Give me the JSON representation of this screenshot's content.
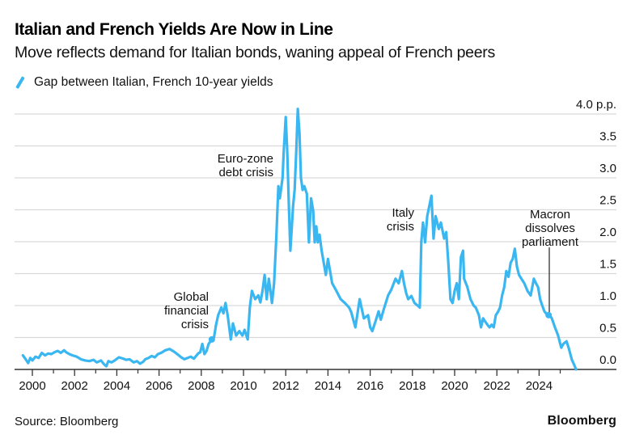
{
  "header": {
    "title": "Italian and French Yields Are Now in Line",
    "subtitle": "Move reflects demand for Italian bonds, waning appeal of French peers"
  },
  "footer": {
    "source": "Source: Bloomberg",
    "logo": "Bloomberg"
  },
  "colors": {
    "series": "#3ab7f0",
    "grid": "#d9d9d9",
    "axis": "#333333",
    "text": "#111111"
  },
  "chart_data": {
    "type": "line",
    "title": "Italian and French Yields Are Now in Line",
    "subtitle": "Move reflects demand for Italian bonds, waning appeal of French peers",
    "xlabel": "",
    "ylabel": "",
    "y_unit_label": "4.0 p.p.",
    "xlim": [
      1999.3,
      2028.1
    ],
    "ylim": [
      0.0,
      4.0
    ],
    "grid": true,
    "legend_position": "top-left",
    "x_ticks": [
      2000,
      2002,
      2004,
      2006,
      2008,
      2010,
      2012,
      2014,
      2016,
      2018,
      2020,
      2022,
      2024
    ],
    "x_minor_ticks": [
      2001,
      2003,
      2005,
      2007,
      2009,
      2011,
      2013,
      2015,
      2017,
      2019,
      2021,
      2023,
      2025
    ],
    "x_tick_labels": [
      "2000",
      "2002",
      "2004",
      "2006",
      "2008",
      "2010",
      "2012",
      "2014",
      "2016",
      "2018",
      "2020",
      "2022",
      "2024"
    ],
    "y_ticks": [
      0.0,
      0.5,
      1.0,
      1.5,
      2.0,
      2.5,
      3.0,
      3.5,
      4.0
    ],
    "y_tick_labels": [
      "0.0",
      "0.5",
      "1.0",
      "1.5",
      "2.0",
      "2.5",
      "3.0",
      "3.5",
      "4.0 p.p."
    ],
    "series": [
      {
        "name": "Gap between Italian, French 10-year yields",
        "x": [
          1999.55,
          1999.7,
          1999.8,
          1999.9,
          2000.0,
          2000.15,
          2000.3,
          2000.45,
          2000.6,
          2000.75,
          2000.9,
          2001.05,
          2001.2,
          2001.35,
          2001.5,
          2001.6,
          2001.75,
          2001.9,
          2002.1,
          2002.3,
          2002.5,
          2002.7,
          2002.9,
          2003.05,
          2003.25,
          2003.4,
          2003.5,
          2003.6,
          2003.75,
          2003.9,
          2004.1,
          2004.3,
          2004.45,
          2004.6,
          2004.8,
          2004.95,
          2005.1,
          2005.25,
          2005.35,
          2005.5,
          2005.65,
          2005.8,
          2005.95,
          2006.1,
          2006.3,
          2006.5,
          2006.7,
          2006.9,
          2007.05,
          2007.2,
          2007.35,
          2007.5,
          2007.65,
          2007.85,
          2007.95,
          2008.05,
          2008.15,
          2008.25,
          2008.35,
          2008.5,
          2008.6,
          2008.7,
          2008.8,
          2008.95,
          2009.05,
          2009.15,
          2009.25,
          2009.4,
          2009.5,
          2009.65,
          2009.8,
          2009.95,
          2010.05,
          2010.2,
          2010.3,
          2010.4,
          2010.55,
          2010.7,
          2010.8,
          2010.9,
          2011.0,
          2011.1,
          2011.2,
          2011.35,
          2011.45,
          2011.55,
          2011.65,
          2011.72,
          2011.85,
          2011.9,
          2012.0,
          2012.07,
          2012.15,
          2012.22,
          2012.35,
          2012.42,
          2012.5,
          2012.57,
          2012.65,
          2012.72,
          2012.8,
          2012.88,
          2013.0,
          2013.1,
          2013.2,
          2013.3,
          2013.37,
          2013.45,
          2013.52,
          2013.6,
          2013.7,
          2013.8,
          2013.9,
          2014.0,
          2014.2,
          2014.4,
          2014.6,
          2014.8,
          2015.0,
          2015.1,
          2015.3,
          2015.5,
          2015.7,
          2015.9,
          2016.0,
          2016.1,
          2016.25,
          2016.4,
          2016.5,
          2016.65,
          2016.85,
          2017.0,
          2017.2,
          2017.35,
          2017.5,
          2017.6,
          2017.7,
          2017.8,
          2017.95,
          2018.1,
          2018.25,
          2018.35,
          2018.42,
          2018.5,
          2018.6,
          2018.7,
          2018.8,
          2018.9,
          2019.0,
          2019.1,
          2019.25,
          2019.35,
          2019.5,
          2019.6,
          2019.7,
          2019.8,
          2019.9,
          2020.0,
          2020.1,
          2020.2,
          2020.3,
          2020.4,
          2020.45,
          2020.6,
          2020.75,
          2020.9,
          2021.0,
          2021.15,
          2021.25,
          2021.35,
          2021.45,
          2021.55,
          2021.65,
          2021.75,
          2021.85,
          2021.95,
          2022.05,
          2022.15,
          2022.25,
          2022.35,
          2022.45,
          2022.55,
          2022.65,
          2022.75,
          2022.85,
          2022.95,
          2023.05,
          2023.2,
          2023.3,
          2023.45,
          2023.6,
          2023.75,
          2023.85,
          2023.95,
          2024.05,
          2024.15,
          2024.25,
          2024.4,
          2024.5,
          2024.6,
          2024.75,
          2024.9,
          2025.05,
          2025.15,
          2025.3,
          2025.4,
          2025.55,
          2025.65,
          2025.75
        ],
        "y": [
          0.22,
          0.15,
          0.1,
          0.18,
          0.14,
          0.2,
          0.18,
          0.26,
          0.22,
          0.25,
          0.24,
          0.27,
          0.29,
          0.26,
          0.3,
          0.27,
          0.24,
          0.22,
          0.2,
          0.16,
          0.14,
          0.13,
          0.15,
          0.11,
          0.14,
          0.08,
          0.05,
          0.13,
          0.11,
          0.14,
          0.19,
          0.17,
          0.15,
          0.16,
          0.11,
          0.13,
          0.09,
          0.12,
          0.16,
          0.18,
          0.21,
          0.19,
          0.24,
          0.26,
          0.3,
          0.32,
          0.28,
          0.23,
          0.19,
          0.16,
          0.18,
          0.2,
          0.17,
          0.25,
          0.27,
          0.4,
          0.24,
          0.29,
          0.4,
          0.47,
          0.5,
          0.7,
          0.85,
          0.97,
          0.88,
          1.04,
          0.85,
          0.47,
          0.72,
          0.53,
          0.6,
          0.53,
          0.62,
          0.47,
          0.97,
          1.23,
          1.1,
          1.16,
          1.05,
          1.23,
          1.48,
          1.1,
          1.42,
          1.04,
          1.35,
          2.05,
          2.87,
          2.68,
          3.0,
          3.38,
          3.95,
          3.44,
          2.56,
          1.86,
          2.56,
          2.81,
          3.44,
          4.08,
          3.7,
          3.0,
          2.81,
          2.87,
          2.75,
          1.99,
          2.68,
          2.49,
          1.99,
          2.24,
          1.99,
          2.11,
          1.86,
          1.67,
          1.48,
          1.73,
          1.35,
          1.23,
          1.1,
          1.04,
          0.97,
          0.9,
          0.66,
          1.1,
          0.8,
          0.85,
          0.66,
          0.6,
          0.75,
          0.91,
          0.78,
          0.95,
          1.16,
          1.25,
          1.42,
          1.35,
          1.54,
          1.35,
          1.2,
          1.1,
          1.15,
          1.04,
          1.0,
          0.97,
          2.0,
          2.3,
          1.99,
          2.4,
          2.56,
          2.72,
          2.05,
          2.4,
          2.2,
          2.3,
          2.05,
          2.15,
          1.67,
          1.1,
          1.04,
          1.23,
          1.35,
          1.1,
          1.76,
          1.86,
          1.42,
          1.29,
          1.1,
          1.0,
          0.97,
          0.85,
          0.66,
          0.8,
          0.75,
          0.7,
          0.66,
          0.7,
          0.66,
          0.85,
          0.9,
          0.97,
          1.16,
          1.29,
          1.54,
          1.45,
          1.67,
          1.73,
          1.89,
          1.61,
          1.48,
          1.4,
          1.35,
          1.23,
          1.16,
          1.42,
          1.35,
          1.29,
          1.1,
          1.0,
          0.91,
          0.85,
          0.85,
          0.8,
          0.66,
          0.53,
          0.34,
          0.4,
          0.44,
          0.34,
          0.15,
          0.08,
          0.0
        ]
      }
    ],
    "annotations": [
      {
        "text": [
          "Global",
          "financial",
          "crisis"
        ],
        "x": 2008.5,
        "y": 0.47
      },
      {
        "text": [
          "Euro-zone",
          "debt crisis"
        ],
        "x": 2011.7,
        "y": 3.0
      },
      {
        "text": [
          "Italy",
          "crisis"
        ],
        "x": 2018.4,
        "y": 2.3
      },
      {
        "text": [
          "Macron",
          "dissolves",
          "parliament"
        ],
        "x": 2024.45,
        "y": 0.85
      }
    ]
  }
}
